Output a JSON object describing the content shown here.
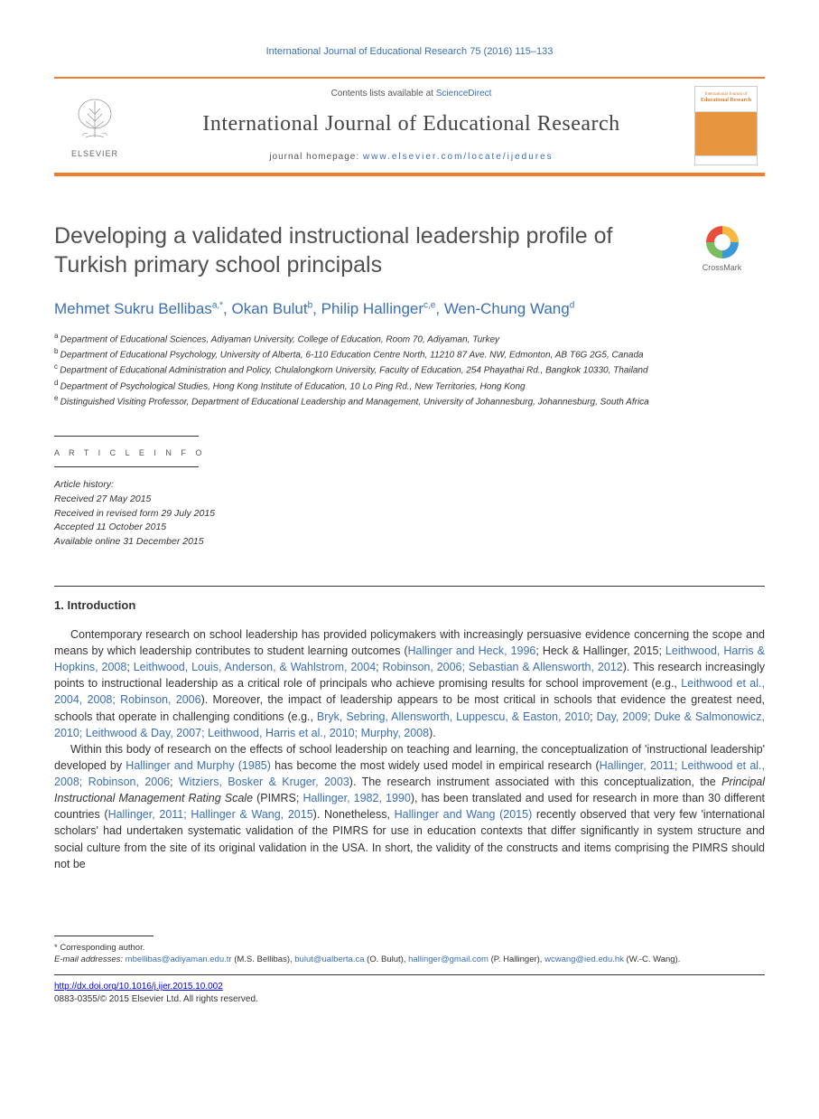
{
  "header": {
    "journal_ref": "International Journal of Educational Research 75 (2016) 115–133",
    "contents_prefix": "Contents lists available at ",
    "contents_link": "ScienceDirect",
    "journal_name": "International Journal of Educational Research",
    "homepage_prefix": "journal homepage: ",
    "homepage_url": "www.elsevier.com/locate/ijedures",
    "elsevier_label": "ELSEVIER",
    "cover_title_top": "International Journal of",
    "cover_title_bottom": "Educational Research"
  },
  "colors": {
    "accent_orange": "#ee7d2e",
    "link_blue": "#3a6fb7",
    "text_dark": "#333333",
    "text_gray": "#555555",
    "background": "#ffffff",
    "cover_orange": "#e8953f"
  },
  "crossmark": {
    "label": "CrossMark",
    "seg_colors": [
      "#e84e3c",
      "#f5b942",
      "#3a99d8",
      "#7cbb5e"
    ]
  },
  "article": {
    "title": "Developing a validated instructional leadership profile of Turkish primary school principals",
    "authors": [
      {
        "name": "Mehmet Sukru Bellibas",
        "sup": "a,",
        "corr": "*"
      },
      {
        "name": "Okan Bulut",
        "sup": "b"
      },
      {
        "name": "Philip Hallinger",
        "sup": "c,e"
      },
      {
        "name": "Wen-Chung Wang",
        "sup": "d"
      }
    ],
    "affiliations": [
      {
        "sup": "a",
        "text": "Department of Educational Sciences, Adiyaman University, College of Education, Room 70, Adiyaman, Turkey"
      },
      {
        "sup": "b",
        "text": "Department of Educational Psychology, University of Alberta, 6-110 Education Centre North, 11210 87 Ave. NW, Edmonton, AB T6G 2G5, Canada"
      },
      {
        "sup": "c",
        "text": "Department of Educational Administration and Policy, Chulalongkorn University, Faculty of Education, 254 Phayathai Rd., Bangkok 10330, Thailand"
      },
      {
        "sup": "d",
        "text": "Department of Psychological Studies, Hong Kong Institute of Education, 10 Lo Ping Rd., New Territories, Hong Kong"
      },
      {
        "sup": "e",
        "text": "Distinguished Visiting Professor, Department of Educational Leadership and Management, University of Johannesburg, Johannesburg, South Africa"
      }
    ]
  },
  "info": {
    "section_label": "A R T I C L E  I N F O",
    "history_label": "Article history:",
    "received": "Received 27 May 2015",
    "revised": "Received in revised form 29 July 2015",
    "accepted": "Accepted 11 October 2015",
    "online": "Available online 31 December 2015"
  },
  "section": {
    "heading": "1. Introduction"
  },
  "body": {
    "p1_a": "Contemporary research on school leadership has provided policymakers with increasingly persuasive evidence concerning the scope and means by which leadership contributes to student learning outcomes (",
    "p1_ref1": "Hallinger and Heck, 1996",
    "p1_b": "; Heck & Hallinger, 2015; ",
    "p1_ref2": "Leithwood, Harris & Hopkins, 2008",
    "p1_c": "; ",
    "p1_ref3": "Leithwood, Louis, Anderson, & Wahlstrom, 2004",
    "p1_d": "; ",
    "p1_ref4": "Robinson, 2006; Sebastian & Allensworth, 2012",
    "p1_e": "). This research increasingly points to instructional leadership as a critical role of principals who achieve promising results for school improvement (e.g., ",
    "p1_ref5": "Leithwood et al., 2004, 2008; Robinson, 2006",
    "p1_f": "). Moreover, the impact of leadership appears to be most critical in schools that evidence the greatest need, schools that operate in challenging conditions (e.g., ",
    "p1_ref6": "Bryk, Sebring, Allensworth, Luppescu, & Easton, 2010",
    "p1_g": "; ",
    "p1_ref7": "Day, 2009; Duke & Salmonowicz, 2010; Leithwood & Day, 2007; Leithwood, Harris et al., 2010; Murphy, 2008",
    "p1_h": ").",
    "p2_a": "Within this body of research on the effects of school leadership on teaching and learning, the conceptualization of 'instructional leadership' developed by ",
    "p2_ref1": "Hallinger and Murphy (1985)",
    "p2_b": " has become the most widely used model in empirical research (",
    "p2_ref2": "Hallinger, 2011; Leithwood et al., 2008; Robinson, 2006",
    "p2_c": "; ",
    "p2_ref3": "Witziers, Bosker & Kruger, 2003",
    "p2_d": "). The research instrument associated with this conceptualization, the ",
    "p2_it": "Principal Instructional Management Rating Scale",
    "p2_e": " (PIMRS; ",
    "p2_ref4": "Hallinger, 1982, 1990",
    "p2_f": "), has been translated and used for research in more than 30 different countries (",
    "p2_ref5": "Hallinger, 2011; Hallinger & Wang, 2015",
    "p2_g": "). Nonetheless, ",
    "p2_ref6": "Hallinger and Wang (2015)",
    "p2_h": " recently observed that very few 'international scholars' had undertaken systematic validation of the PIMRS for use in education contexts that differ significantly in system structure and social culture from the site of its original validation in the USA. In short, the validity of the constructs and items comprising the PIMRS should not be"
  },
  "footnotes": {
    "corr_label": "* Corresponding author.",
    "email_label": "E-mail addresses:",
    "emails": [
      {
        "addr": "mbellibas@adiyaman.edu.tr",
        "who": " (M.S. Bellibas), "
      },
      {
        "addr": "bulut@ualberta.ca",
        "who": " (O. Bulut), "
      },
      {
        "addr": "hallinger@gmail.com",
        "who": " (P. Hallinger), "
      },
      {
        "addr": "wcwang@ied.edu.hk",
        "who": " (W.-C. Wang)."
      }
    ],
    "doi": "http://dx.doi.org/10.1016/j.ijer.2015.10.002",
    "issn_copy": "0883-0355/© 2015 Elsevier Ltd. All rights reserved."
  }
}
